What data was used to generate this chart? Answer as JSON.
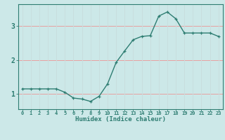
{
  "x": [
    0,
    1,
    2,
    3,
    4,
    5,
    6,
    7,
    8,
    9,
    10,
    11,
    12,
    13,
    14,
    15,
    16,
    17,
    18,
    19,
    20,
    21,
    22,
    23
  ],
  "y": [
    1.15,
    1.15,
    1.15,
    1.15,
    1.15,
    1.05,
    0.88,
    0.85,
    0.78,
    0.93,
    1.3,
    1.93,
    2.27,
    2.6,
    2.7,
    2.72,
    3.3,
    3.42,
    3.22,
    2.8,
    2.8,
    2.8,
    2.8,
    2.7
  ],
  "bg_color": "#cce8e8",
  "line_color": "#2e7d72",
  "marker": "+",
  "grid_color_h": "#e8a0a0",
  "grid_color_v": "#c8dede",
  "xlabel": "Humidex (Indice chaleur)",
  "xlabel_color": "#2e7d72",
  "tick_color": "#2e7d72",
  "axis_color": "#2e7d72",
  "ylim": [
    0.55,
    3.65
  ],
  "xlim": [
    -0.5,
    23.5
  ],
  "yticks": [
    1,
    2,
    3
  ],
  "xtick_labels": [
    "0",
    "1",
    "2",
    "3",
    "4",
    "5",
    "6",
    "7",
    "8",
    "9",
    "10",
    "11",
    "12",
    "13",
    "14",
    "15",
    "16",
    "17",
    "18",
    "19",
    "20",
    "21",
    "22",
    "23"
  ],
  "linewidth": 1.0,
  "markersize": 3.5,
  "markeredgewidth": 0.9
}
